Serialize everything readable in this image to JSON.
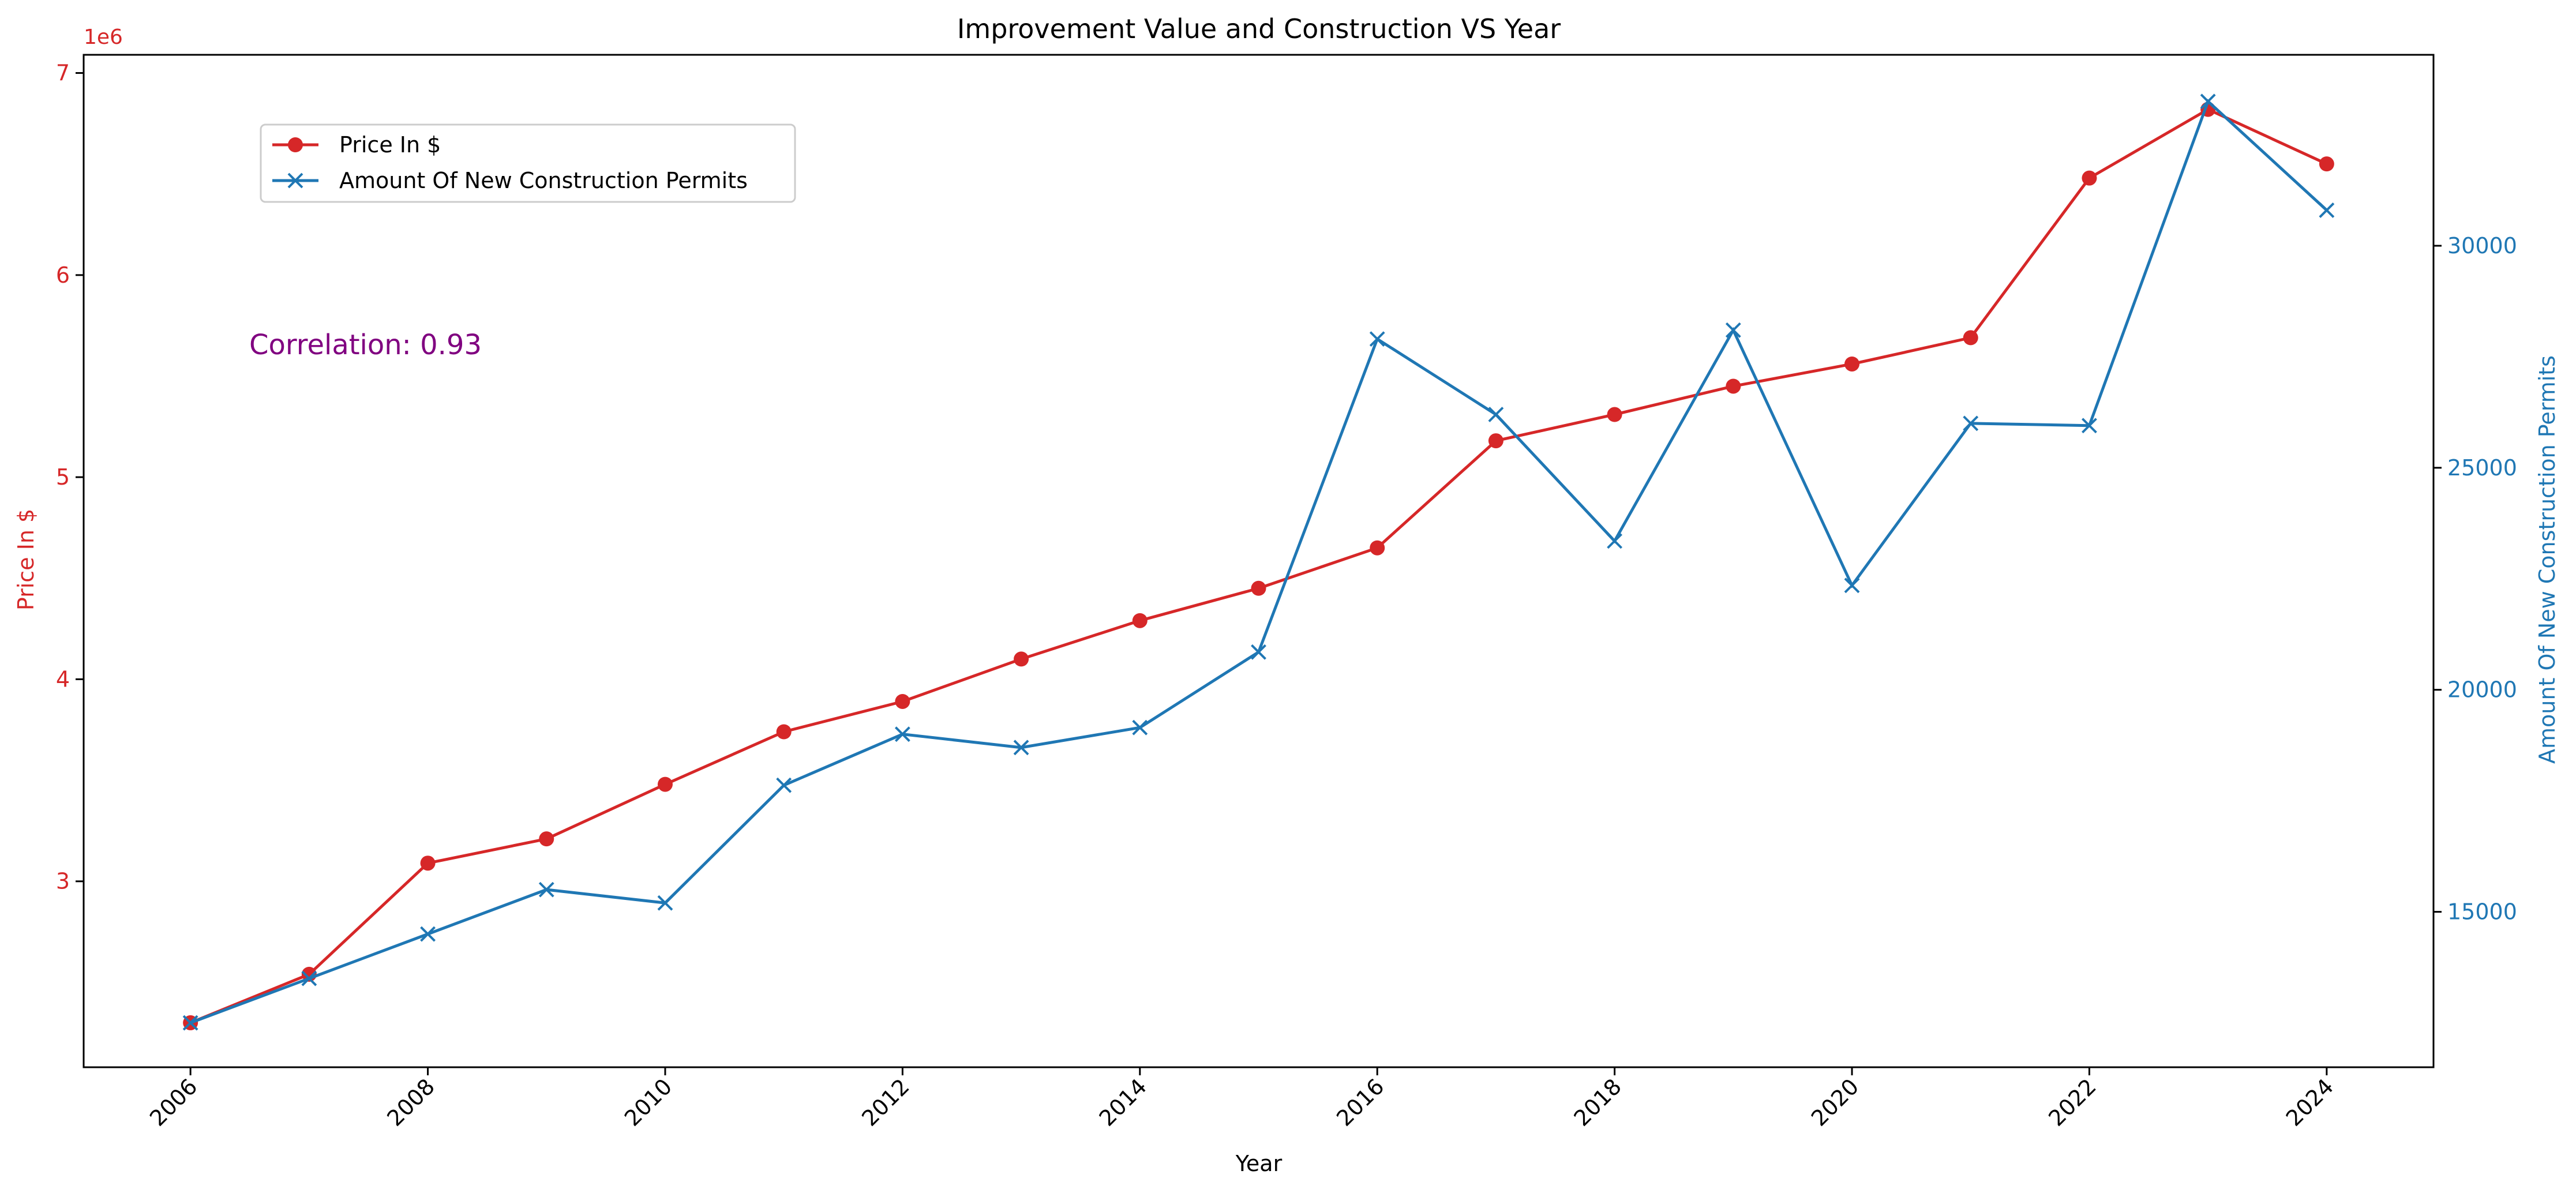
{
  "colors": {
    "price": "#d62728",
    "permits": "#1f77b4",
    "annotation": "#800080",
    "axis": "#000000"
  },
  "chart_data": {
    "type": "line",
    "title": "Improvement Value and Construction VS Year",
    "xlabel": "Year",
    "x": [
      2006,
      2007,
      2008,
      2009,
      2010,
      2011,
      2012,
      2013,
      2014,
      2015,
      2016,
      2017,
      2018,
      2019,
      2020,
      2021,
      2022,
      2023,
      2024
    ],
    "xticks": [
      "2006",
      "2008",
      "2010",
      "2012",
      "2014",
      "2016",
      "2018",
      "2020",
      "2022",
      "2024"
    ],
    "xlim": [
      2005.1,
      2024.9
    ],
    "series": [
      {
        "name": "Price In $",
        "axis": "left",
        "marker": "circle",
        "values": [
          2300000,
          2540000,
          3090000,
          3210000,
          3480000,
          3740000,
          3890000,
          4100000,
          4290000,
          4450000,
          4650000,
          5180000,
          5310000,
          5450000,
          5560000,
          5690000,
          6480000,
          6820000,
          6550000
        ]
      },
      {
        "name": "Amount Of New Construction Permits",
        "axis": "right",
        "marker": "x",
        "values": [
          12500,
          13500,
          14500,
          15500,
          15200,
          17850,
          19000,
          18700,
          19150,
          20850,
          27900,
          26200,
          23350,
          28100,
          22350,
          26000,
          25950,
          33250,
          30800
        ]
      }
    ],
    "y_left": {
      "label": "Price In $",
      "ticks": [
        3,
        4,
        5,
        6,
        7
      ],
      "multiplier_label": "1e6",
      "multiplier": 1000000,
      "range": [
        2080000,
        7090000
      ]
    },
    "y_right": {
      "label": "Amount Of New Construction Permits",
      "ticks": [
        15000,
        20000,
        25000,
        30000
      ],
      "range": [
        11500,
        34300
      ]
    },
    "annotation": "Correlation: 0.93",
    "legend_position": "top-left",
    "grid": false
  }
}
